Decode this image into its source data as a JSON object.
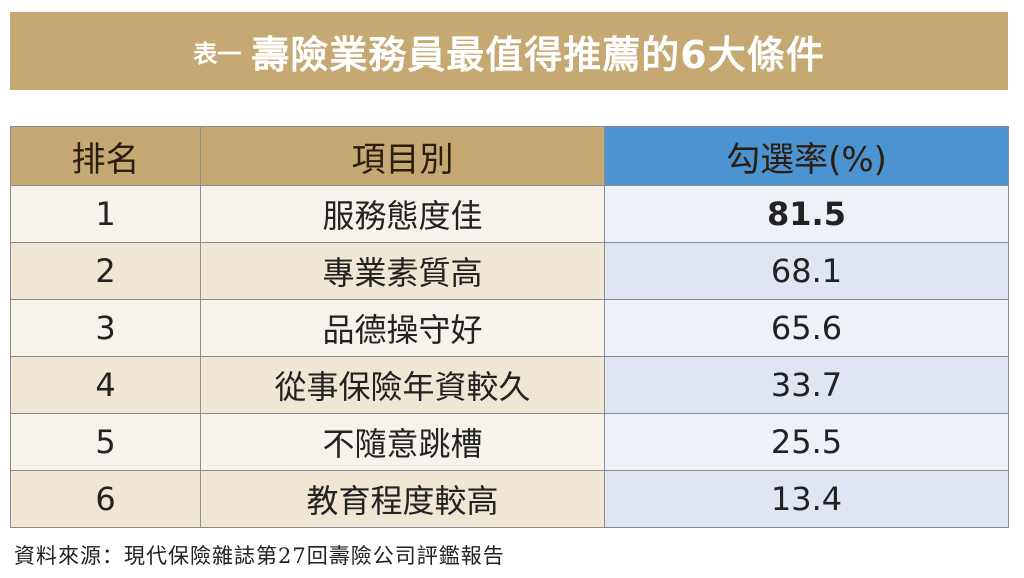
{
  "title": {
    "prefix": "表一",
    "main": "壽險業務員最值得推薦的6大條件"
  },
  "table": {
    "headers": [
      "排名",
      "項目別",
      "勾選率(%)"
    ],
    "rows": [
      {
        "rank": "1",
        "item": "服務態度佳",
        "rate": "81.5"
      },
      {
        "rank": "2",
        "item": "專業素質高",
        "rate": "68.1"
      },
      {
        "rank": "3",
        "item": "品德操守好",
        "rate": "65.6"
      },
      {
        "rank": "4",
        "item": "從事保險年資較久",
        "rate": "33.7"
      },
      {
        "rank": "5",
        "item": "不隨意跳槽",
        "rate": "25.5"
      },
      {
        "rank": "6",
        "item": "教育程度較高",
        "rate": "13.4"
      }
    ]
  },
  "colors": {
    "gold": "#c5a872",
    "blue": "#4b93d1",
    "highlight": "#d7161f"
  },
  "source": "資料來源：現代保險雜誌第27回壽險公司評鑑報告"
}
